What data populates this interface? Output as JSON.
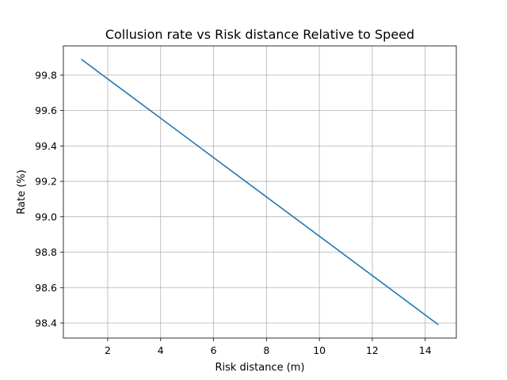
{
  "chart_data": {
    "type": "line",
    "title": "Collusion rate vs Risk distance Relative to Speed",
    "xlabel": "Risk distance (m)",
    "ylabel": "Rate (%)",
    "xlim": [
      0.325,
      15.175
    ],
    "ylim": [
      98.315,
      99.965
    ],
    "xticks": [
      2,
      4,
      6,
      8,
      10,
      12,
      14
    ],
    "yticks": [
      98.4,
      98.6,
      98.8,
      99.0,
      99.2,
      99.4,
      99.6,
      99.8
    ],
    "xtick_labels": [
      "2",
      "4",
      "6",
      "8",
      "10",
      "12",
      "14"
    ],
    "ytick_labels": [
      "98.4",
      "98.6",
      "98.8",
      "99.0",
      "99.2",
      "99.4",
      "99.6",
      "99.8"
    ],
    "grid": true,
    "legend": "none",
    "series": [
      {
        "color": "#1f77b4",
        "x": [
          1.0,
          14.5
        ],
        "y": [
          99.89,
          98.39
        ]
      }
    ]
  }
}
